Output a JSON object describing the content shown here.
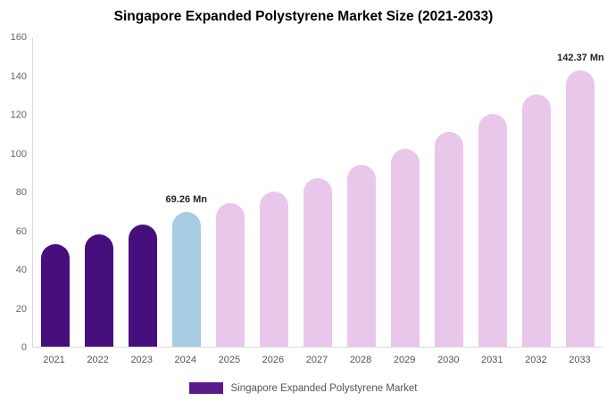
{
  "chart_data": {
    "type": "bar",
    "title": "Singapore Expanded Polystyrene Market Size (2021-2033)",
    "categories": [
      "2021",
      "2022",
      "2023",
      "2024",
      "2025",
      "2026",
      "2027",
      "2028",
      "2029",
      "2030",
      "2031",
      "2032",
      "2033"
    ],
    "values": [
      53,
      58,
      63,
      69.26,
      74,
      80,
      87,
      94,
      102,
      111,
      120,
      130,
      142.37
    ],
    "bar_colors": [
      "#470f7d",
      "#470f7d",
      "#470f7d",
      "#a6cde3",
      "#e9c7ea",
      "#e9c7ea",
      "#e9c7ea",
      "#e9c7ea",
      "#e9c7ea",
      "#e9c7ea",
      "#e9c7ea",
      "#e9c7ea",
      "#e9c7ea"
    ],
    "ylim": [
      0,
      160
    ],
    "yticks": [
      0,
      20,
      40,
      60,
      80,
      100,
      120,
      140,
      160
    ],
    "grid": false,
    "annotations": [
      {
        "index": 3,
        "text": "69.26 Mn"
      },
      {
        "index": 12,
        "text": "142.37 Mn"
      }
    ],
    "legend": {
      "position": "bottom",
      "label": "Singapore Expanded Polystyrene Market",
      "swatch_color": "#5a1a8c"
    }
  }
}
